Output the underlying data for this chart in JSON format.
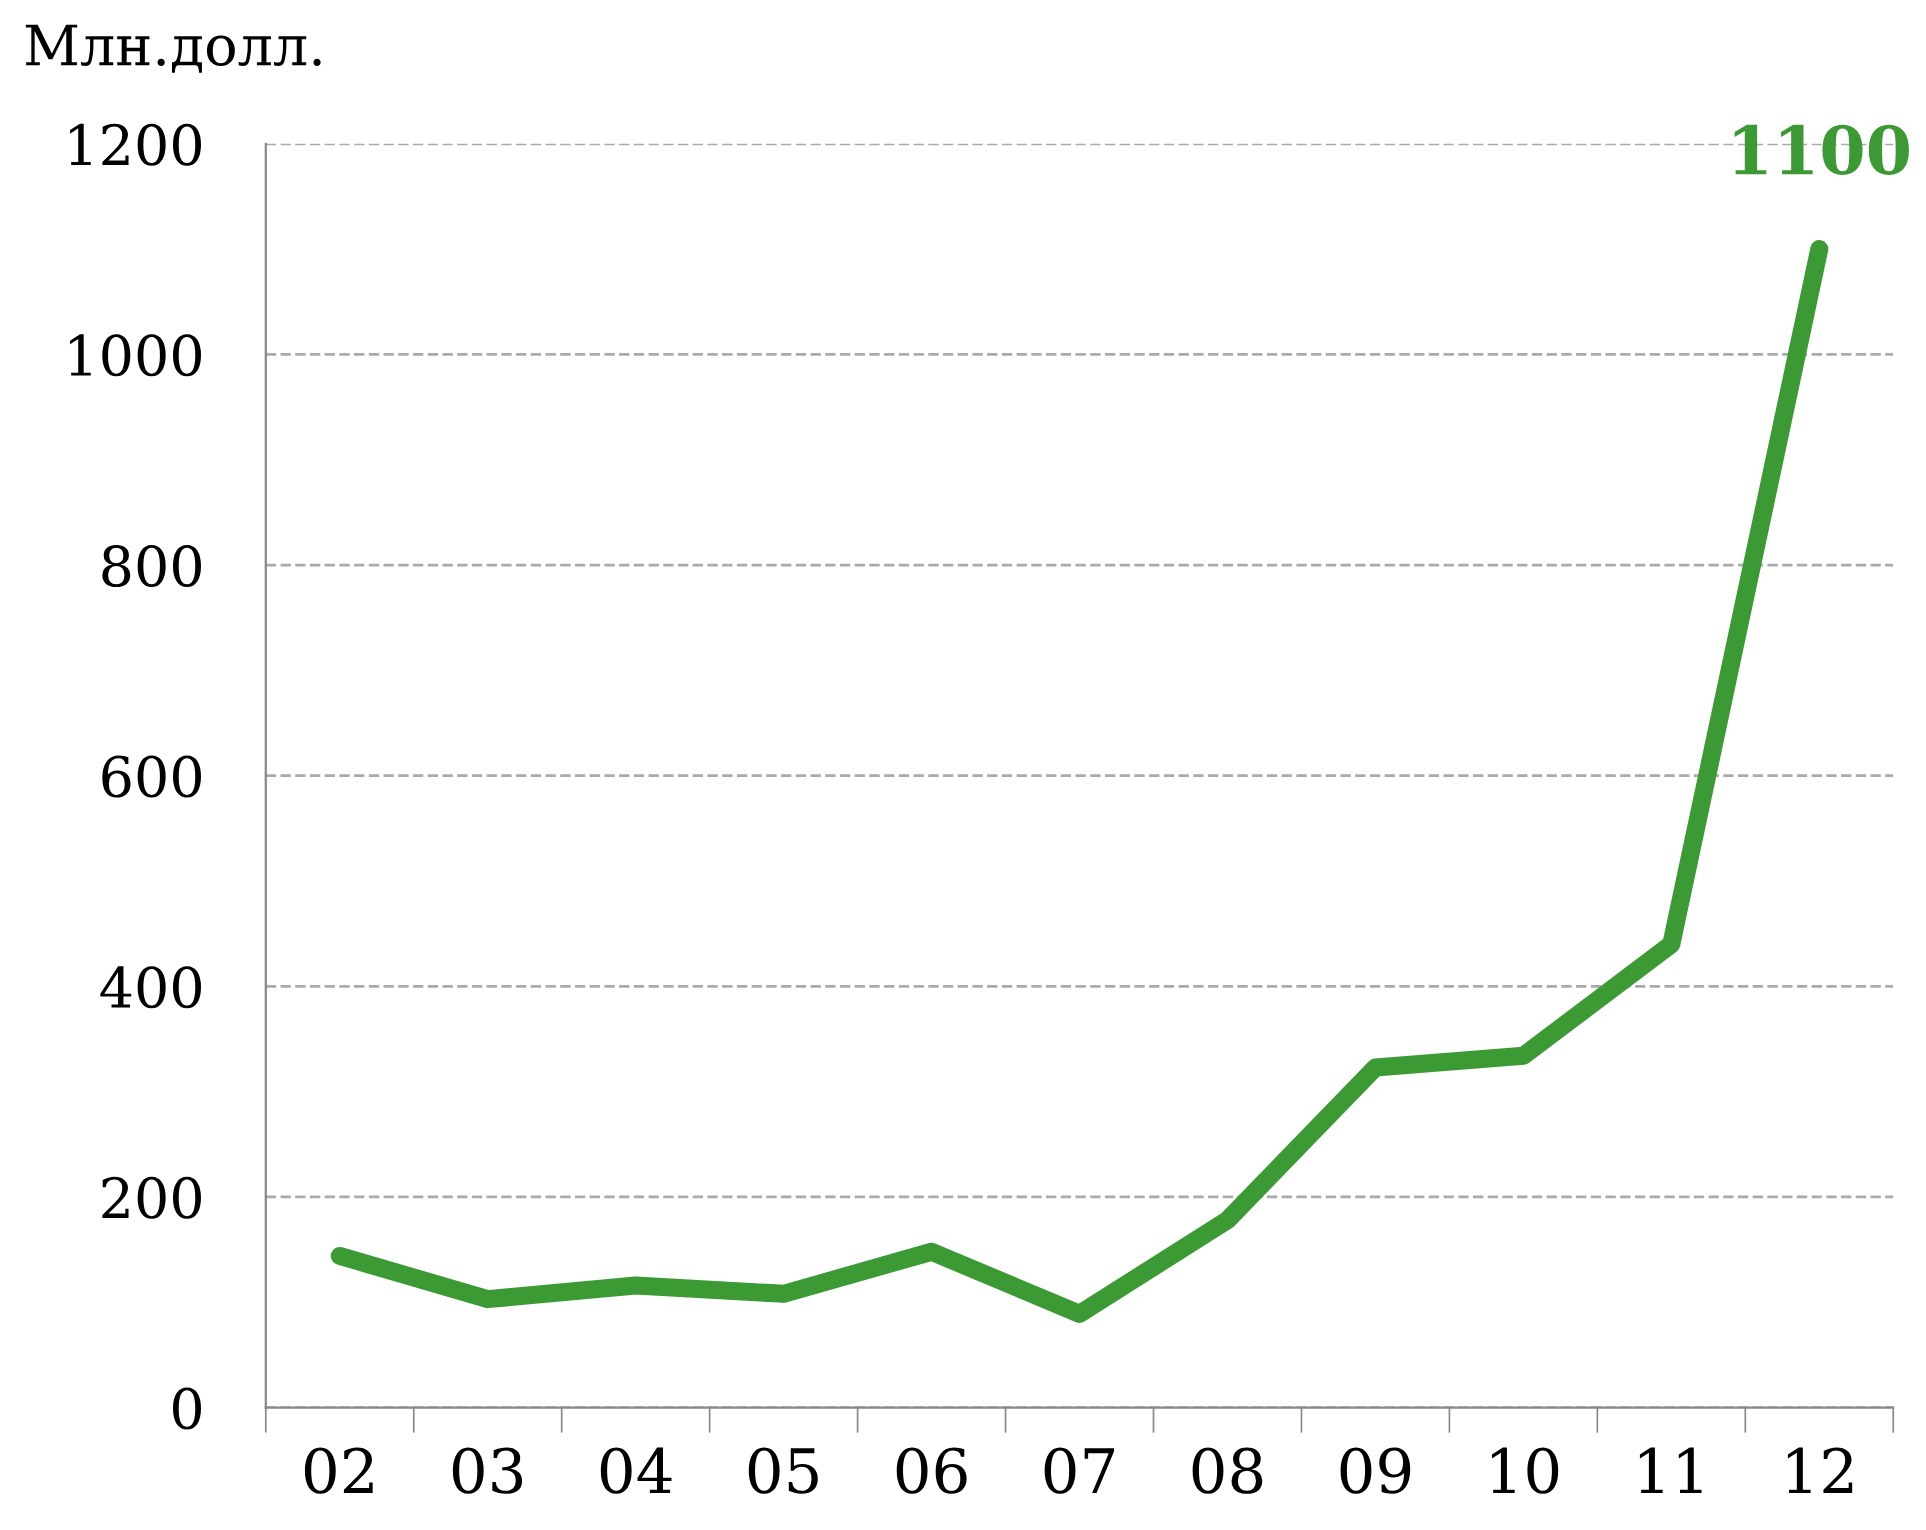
{
  "chart_data": {
    "type": "line",
    "ylabel": "Млн.долл.",
    "categories": [
      "02",
      "03",
      "04",
      "05",
      "06",
      "07",
      "08",
      "09",
      "10",
      "11",
      "12"
    ],
    "series": [
      {
        "color": "#3c9a35",
        "values": [
          144,
          103,
          116,
          108,
          148,
          89,
          178,
          323,
          334,
          440,
          1100
        ]
      }
    ],
    "ylim": [
      0,
      1200
    ],
    "yticks": [
      0,
      200,
      400,
      600,
      800,
      1000,
      1200
    ],
    "grid": "y",
    "marker": "none",
    "line_style": "solid",
    "annotations": [
      {
        "text": "1100",
        "x": "12",
        "y": 1100
      }
    ]
  }
}
